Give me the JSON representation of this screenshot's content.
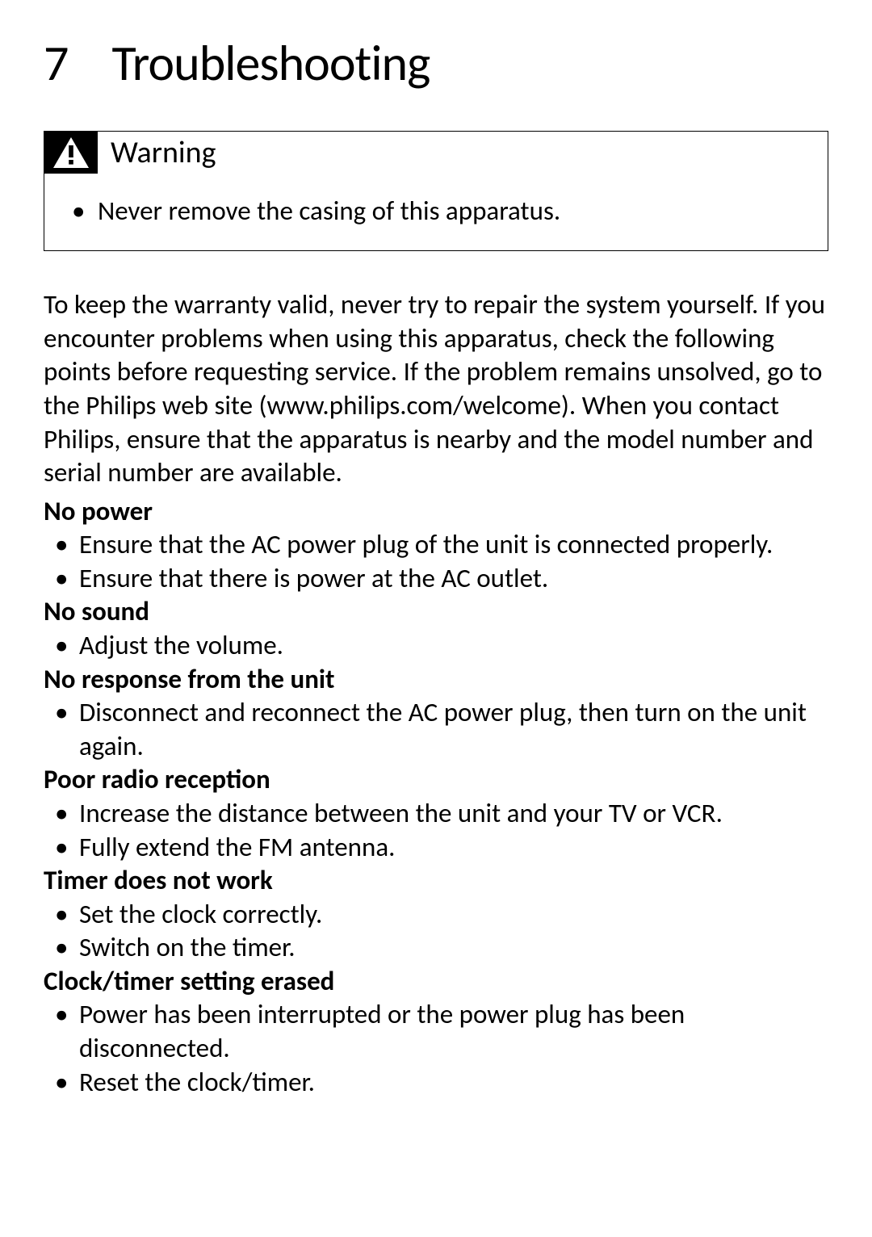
{
  "chapter": {
    "number": "7",
    "title": "Troubleshooting"
  },
  "warning": {
    "label": "Warning",
    "items": [
      "Never remove the casing of this apparatus."
    ]
  },
  "intro": "To keep the warranty valid, never try to repair the system yourself. If you encounter problems when using this apparatus, check the following points before requesting service. If the problem remains unsolved, go to the Philips web site (www.philips.com/welcome). When you contact Philips, ensure that the apparatus is nearby and the model number and serial number are available.",
  "sections": [
    {
      "title": "No power",
      "items": [
        "Ensure that the AC power plug of the unit is connected properly.",
        "Ensure that there is power at the AC outlet."
      ]
    },
    {
      "title": "No sound",
      "items": [
        "Adjust the volume."
      ]
    },
    {
      "title": "No response from the unit",
      "items": [
        "Disconnect and reconnect the AC power plug, then turn on the unit again."
      ]
    },
    {
      "title": "Poor radio reception",
      "items": [
        "Increase the distance between the unit and your TV or VCR.",
        "Fully extend the FM antenna."
      ]
    },
    {
      "title": "Timer does not work",
      "items": [
        "Set the clock correctly.",
        "Switch on the timer."
      ]
    },
    {
      "title": "Clock/timer setting erased",
      "items": [
        "Power has been interrupted or the power plug has been disconnected.",
        "Reset the clock/timer."
      ]
    }
  ],
  "colors": {
    "text": "#000000",
    "background": "#ffffff",
    "badge_bg": "#000000",
    "badge_fg": "#ffffff"
  },
  "typography": {
    "heading_fontsize_pt": 46,
    "body_fontsize_pt": 25,
    "callout_title_fontsize_pt": 28,
    "section_title_weight": 600
  }
}
